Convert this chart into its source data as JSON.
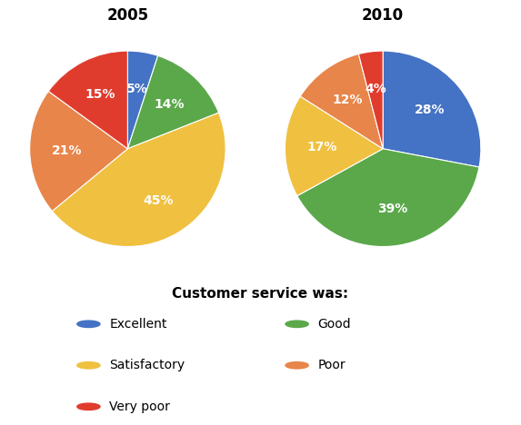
{
  "chart_2005": {
    "title": "2005",
    "labels": [
      "Excellent",
      "Good",
      "Satisfactory",
      "Poor",
      "Very poor"
    ],
    "values": [
      5,
      14,
      45,
      21,
      15
    ],
    "colors": [
      "#4472C4",
      "#5BA84B",
      "#F0C040",
      "#E8854A",
      "#E03C2E"
    ],
    "startangle": 90
  },
  "chart_2010": {
    "title": "2010",
    "labels": [
      "Excellent",
      "Good",
      "Satisfactory",
      "Poor",
      "Very poor"
    ],
    "values": [
      28,
      39,
      17,
      12,
      4
    ],
    "colors": [
      "#4472C4",
      "#5BA84B",
      "#F0C040",
      "#E8854A",
      "#E03C2E"
    ],
    "startangle": 90
  },
  "legend_title": "Customer service was:",
  "legend_labels": [
    "Excellent",
    "Good",
    "Satisfactory",
    "Poor",
    "Very poor"
  ],
  "legend_colors": [
    "#4472C4",
    "#5BA84B",
    "#F0C040",
    "#E8854A",
    "#E03C2E"
  ],
  "background_color": "#FFFFFF",
  "label_fontsize": 10,
  "title_fontsize": 12,
  "legend_title_fontsize": 11,
  "legend_fontsize": 10
}
